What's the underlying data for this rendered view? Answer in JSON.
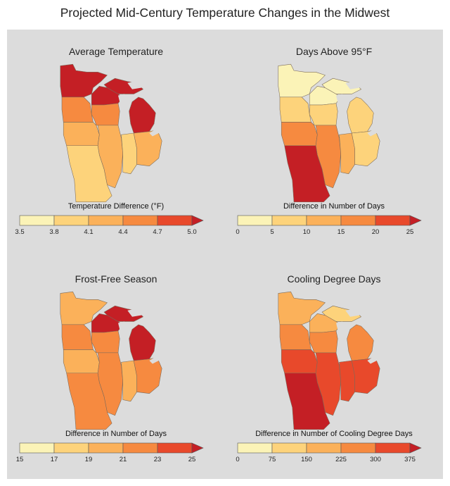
{
  "title": "Projected Mid-Century Temperature Changes in the Midwest",
  "maps": [
    {
      "title": "Average Temperature",
      "legend_title": "Temperature Difference (°F)",
      "ticks": [
        "3.5",
        "3.8",
        "4.1",
        "4.4",
        "4.7",
        "5.0"
      ],
      "palette": [
        "#fbf3b7",
        "#fdd37b",
        "#fbb15a",
        "#f68a40",
        "#e8492b",
        "#c41f25"
      ],
      "region_levels": {
        "mn_north": 5,
        "mn_south": 3,
        "wi_north": 5,
        "wi_south": 3,
        "mi_upper": 5,
        "mi_lower": 5,
        "ia": 2,
        "il": 2,
        "in": 1,
        "oh": 2,
        "mo": 1
      }
    },
    {
      "title": "Days Above 95°F",
      "legend_title": "Difference in Number of Days",
      "ticks": [
        "0",
        "5",
        "10",
        "15",
        "20",
        "25"
      ],
      "palette": [
        "#fbf3b7",
        "#fdd37b",
        "#fbb15a",
        "#f68a40",
        "#e8492b",
        "#c41f25"
      ],
      "region_levels": {
        "mn_north": 0,
        "mn_south": 1,
        "wi_north": 0,
        "wi_south": 1,
        "mi_upper": 0,
        "mi_lower": 1,
        "ia": 3,
        "il": 3,
        "in": 2,
        "oh": 1,
        "mo": 5
      }
    },
    {
      "title": "Frost-Free Season",
      "legend_title": "Difference in Number of Days",
      "ticks": [
        "15",
        "17",
        "19",
        "21",
        "23",
        "25"
      ],
      "palette": [
        "#fbf3b7",
        "#fdd37b",
        "#fbb15a",
        "#f68a40",
        "#e8492b",
        "#c41f25"
      ],
      "region_levels": {
        "mn_north": 2,
        "mn_south": 3,
        "wi_north": 5,
        "wi_south": 3,
        "mi_upper": 5,
        "mi_lower": 5,
        "ia": 2,
        "il": 3,
        "in": 2,
        "oh": 3,
        "mo": 3
      }
    },
    {
      "title": "Cooling Degree Days",
      "legend_title": "Difference in Number of Cooling Degree Days",
      "ticks": [
        "0",
        "75",
        "150",
        "225",
        "300",
        "375"
      ],
      "palette": [
        "#fbf3b7",
        "#fdd37b",
        "#fbb15a",
        "#f68a40",
        "#e8492b",
        "#c41f25"
      ],
      "region_levels": {
        "mn_north": 2,
        "mn_south": 3,
        "wi_north": 2,
        "wi_south": 3,
        "mi_upper": 1,
        "mi_lower": 3,
        "ia": 4,
        "il": 4,
        "in": 4,
        "oh": 4,
        "mo": 5
      }
    }
  ]
}
